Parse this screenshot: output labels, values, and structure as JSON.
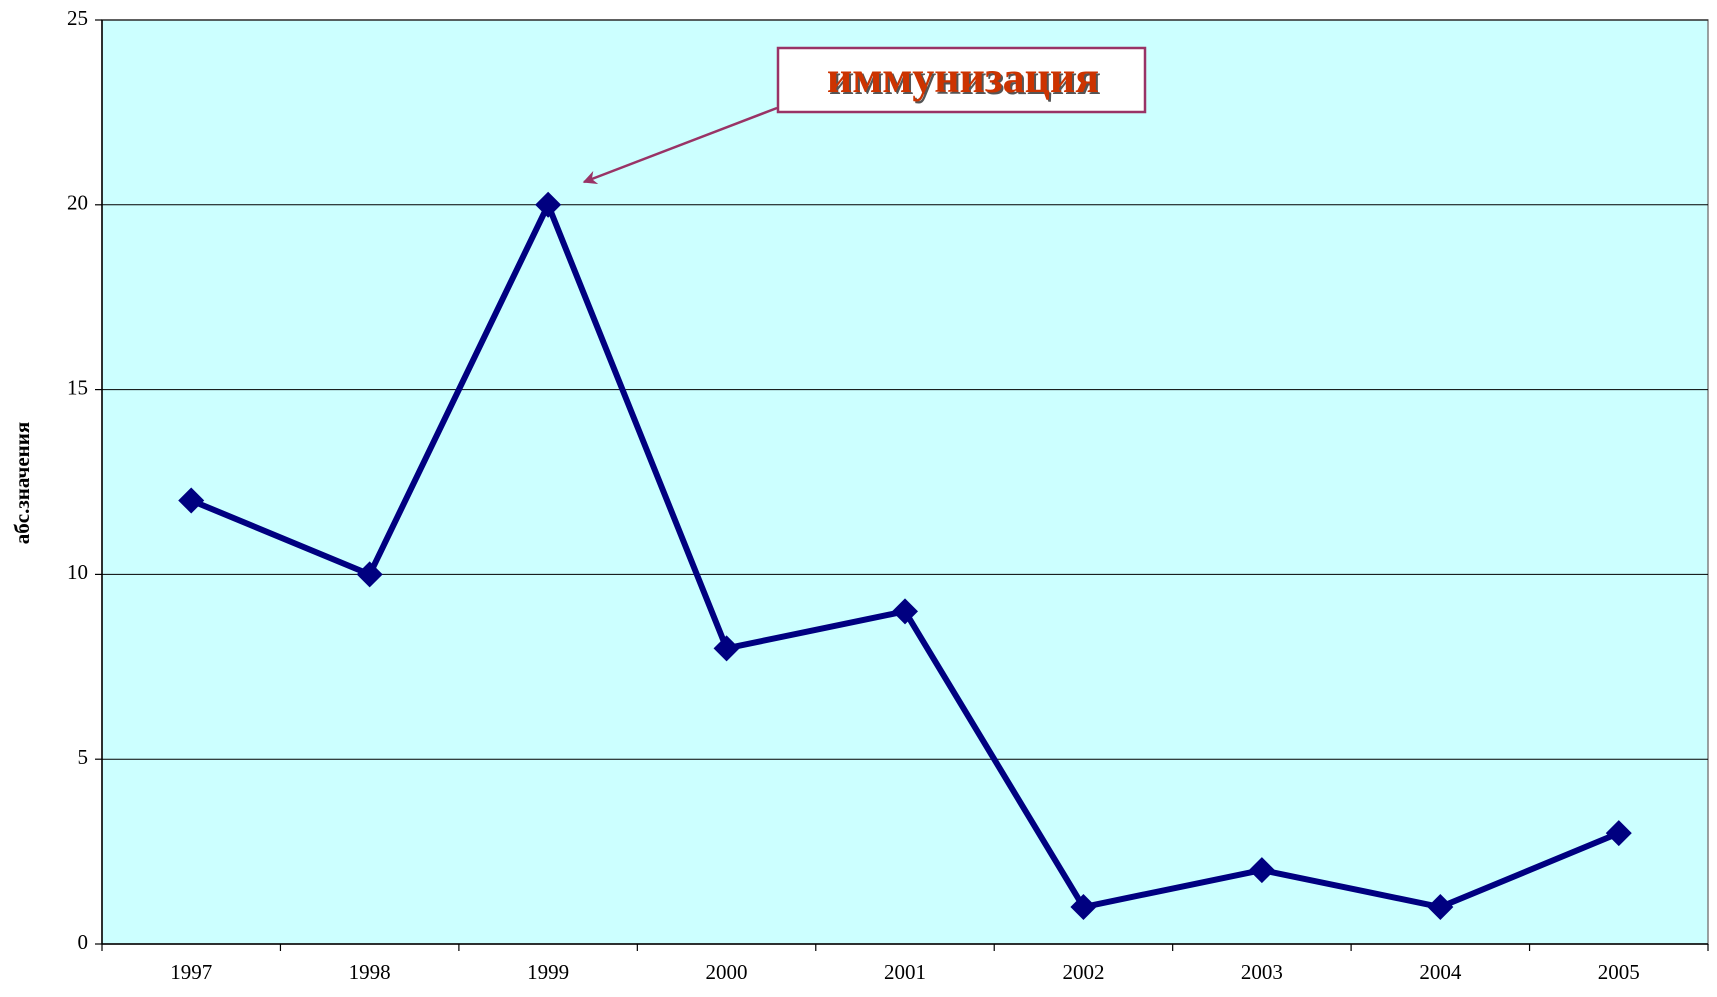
{
  "chart_data": {
    "type": "line",
    "y_label": "абс.значения",
    "annotation": "иммунизация",
    "categories": [
      "1997",
      "1998",
      "1999",
      "2000",
      "2001",
      "2002",
      "2003",
      "2004",
      "2005"
    ],
    "values": [
      12,
      10,
      20,
      8,
      9,
      1,
      2,
      1,
      3
    ],
    "color": "#000080",
    "background": "#ccffff",
    "ylim": [
      0,
      25
    ],
    "yticks": [
      0,
      5,
      10,
      15,
      20,
      25
    ],
    "grid": true
  }
}
